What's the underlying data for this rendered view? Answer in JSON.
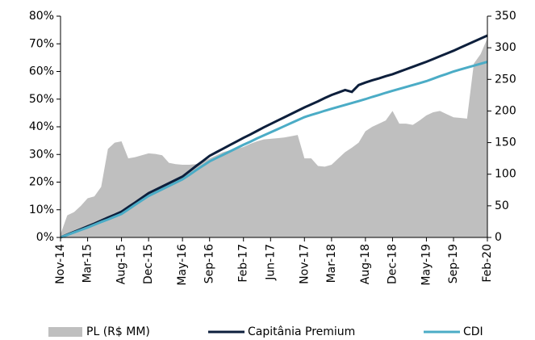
{
  "chart_data": {
    "type": "line",
    "categories": [
      "Nov-14",
      null,
      null,
      null,
      "Mar-15",
      null,
      null,
      null,
      null,
      "Aug-15",
      null,
      null,
      null,
      "Dec-15",
      null,
      null,
      null,
      null,
      "May-16",
      null,
      null,
      null,
      "Sep-16",
      null,
      null,
      null,
      null,
      "Feb-17",
      null,
      null,
      null,
      "Jun-17",
      null,
      null,
      null,
      null,
      "Nov-17",
      null,
      null,
      null,
      "Mar-18",
      null,
      null,
      null,
      null,
      "Aug-18",
      null,
      null,
      null,
      "Dec-18",
      null,
      null,
      null,
      null,
      "May-19",
      null,
      null,
      null,
      "Sep-19",
      null,
      null,
      null,
      null,
      "Feb-20"
    ],
    "series": [
      {
        "name": "PL (R$ MM)",
        "type": "area",
        "axis": "y2",
        "color": "#bfbfbf",
        "values": [
          5,
          35,
          40,
          50,
          62,
          65,
          80,
          140,
          150,
          152,
          125,
          127,
          130,
          133,
          132,
          130,
          118,
          116,
          115,
          115,
          116,
          120,
          125,
          130,
          135,
          138,
          140,
          143,
          148,
          152,
          155,
          156,
          157,
          158,
          160,
          162,
          125,
          125,
          113,
          112,
          115,
          125,
          135,
          142,
          150,
          168,
          175,
          180,
          185,
          200,
          180,
          180,
          178,
          185,
          193,
          198,
          200,
          195,
          190,
          189,
          188,
          275,
          290,
          315
        ]
      },
      {
        "name": "Capitânia Premium",
        "type": "line",
        "color": "#0d1f3c",
        "values": [
          0,
          1,
          2,
          3,
          4,
          5,
          6.1,
          7.2,
          8.2,
          9.3,
          11,
          12.6,
          14.3,
          16,
          17.2,
          18.4,
          19.6,
          20.8,
          22,
          23.9,
          25.8,
          27.6,
          29.5,
          30.8,
          32.1,
          33.4,
          34.7,
          36,
          37.2,
          38.5,
          39.8,
          41,
          42.2,
          43.4,
          44.6,
          45.8,
          47,
          48.1,
          49.2,
          50.4,
          51.5,
          52.4,
          53.3,
          52.6,
          55.1,
          56,
          56.8,
          57.5,
          58.3,
          59,
          59.9,
          60.8,
          61.7,
          62.6,
          63.5,
          64.5,
          65.5,
          66.5,
          67.5,
          68.6,
          69.7,
          70.8,
          71.9,
          73
        ]
      },
      {
        "name": "CDI",
        "type": "line",
        "color": "#4bacc6",
        "values": [
          0,
          0.9,
          1.8,
          2.7,
          3.6,
          4.6,
          5.6,
          6.5,
          7.5,
          8.5,
          10.1,
          11.8,
          13.4,
          15,
          16.2,
          17.4,
          18.6,
          19.8,
          21,
          22.6,
          24.3,
          25.9,
          27.5,
          28.7,
          29.9,
          31.1,
          32.3,
          33.5,
          34.6,
          35.8,
          36.9,
          38,
          39.1,
          40.2,
          41.3,
          42.4,
          43.5,
          44.3,
          45,
          45.8,
          46.5,
          47.2,
          47.9,
          48.6,
          49.3,
          50,
          50.8,
          51.5,
          52.3,
          53,
          53.7,
          54.4,
          55.1,
          55.8,
          56.5,
          57.4,
          58.3,
          59.1,
          60,
          60.7,
          61.4,
          62.1,
          62.8,
          63.5
        ]
      }
    ],
    "ylim": [
      0,
      80
    ],
    "yticks": [
      {
        "value": 0,
        "label": "0%"
      },
      {
        "value": 10,
        "label": "10%"
      },
      {
        "value": 20,
        "label": "20%"
      },
      {
        "value": 30,
        "label": "30%"
      },
      {
        "value": 40,
        "label": "40%"
      },
      {
        "value": 50,
        "label": "50%"
      },
      {
        "value": 60,
        "label": "60%"
      },
      {
        "value": 70,
        "label": "70%"
      },
      {
        "value": 80,
        "label": "80%"
      }
    ],
    "y2lim": [
      0,
      350
    ],
    "y2ticks": [
      0,
      50,
      100,
      150,
      200,
      250,
      300,
      350
    ],
    "legend": "bottom"
  }
}
